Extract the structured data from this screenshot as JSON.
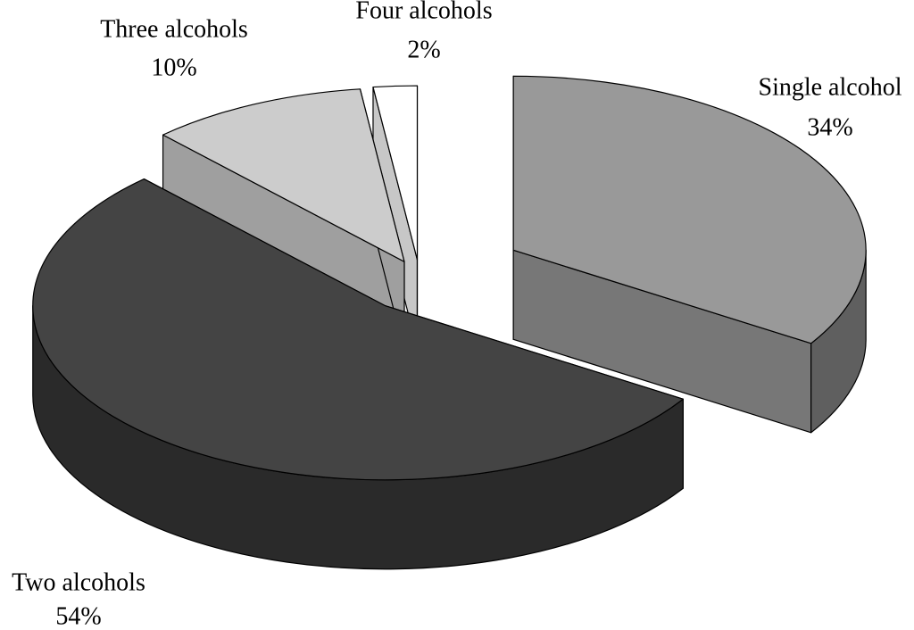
{
  "chart_data": {
    "type": "pie",
    "categories": [
      "Single alcohol",
      "Two alcohols",
      "Three alcohols",
      "Four alcohols"
    ],
    "values": [
      34,
      54,
      10,
      2
    ],
    "value_labels": [
      "34%",
      "54%",
      "10%",
      "2%"
    ],
    "colors": [
      "#999999",
      "#444444",
      "#cccccc",
      "#ffffff"
    ],
    "exploded": true,
    "three_d": true
  }
}
